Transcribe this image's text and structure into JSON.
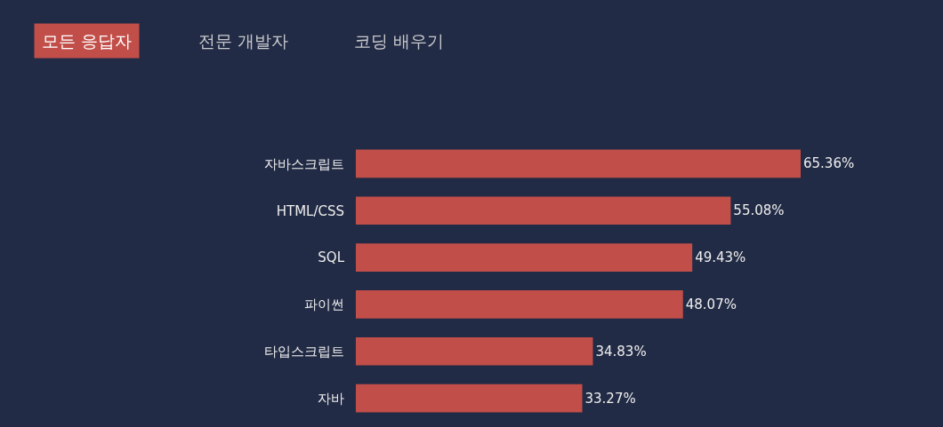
{
  "chart_data": {
    "type": "bar",
    "orientation": "horizontal",
    "categories": [
      "자바스크립트",
      "HTML/CSS",
      "SQL",
      "파이썬",
      "타입스크립트",
      "자바"
    ],
    "values": [
      65.36,
      55.08,
      49.43,
      48.07,
      34.83,
      33.27
    ],
    "value_labels": [
      "65.36%",
      "55.08%",
      "49.43%",
      "48.07%",
      "34.83%",
      "33.27%"
    ],
    "color": "#c24e49",
    "annotations": [
      "모든 응답자",
      "전문 개발자",
      "코딩 배우기"
    ],
    "grid": false,
    "legend": false
  }
}
